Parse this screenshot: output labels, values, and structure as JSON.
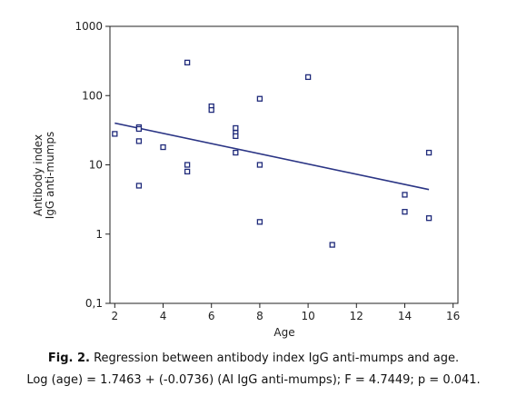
{
  "chart_data": {
    "type": "scatter",
    "xlabel": "Age",
    "ylabel_lines": [
      "Antibody index",
      "IgG anti-mumps"
    ],
    "x_range": [
      1.8,
      16.2
    ],
    "x_ticks": [
      2,
      4,
      6,
      8,
      10,
      12,
      14,
      16
    ],
    "y_scale": "log",
    "y_range": [
      0.1,
      1000
    ],
    "y_ticks": [
      {
        "value": 0.1,
        "label": "0,1"
      },
      {
        "value": 1,
        "label": "1"
      },
      {
        "value": 10,
        "label": "10"
      },
      {
        "value": 100,
        "label": "100"
      },
      {
        "value": 1000,
        "label": "1000"
      }
    ],
    "points": [
      {
        "x": 2,
        "y": 28
      },
      {
        "x": 3,
        "y": 35
      },
      {
        "x": 3,
        "y": 33
      },
      {
        "x": 3,
        "y": 22
      },
      {
        "x": 3,
        "y": 5
      },
      {
        "x": 4,
        "y": 18
      },
      {
        "x": 5,
        "y": 300
      },
      {
        "x": 5,
        "y": 10
      },
      {
        "x": 5,
        "y": 8
      },
      {
        "x": 6,
        "y": 70
      },
      {
        "x": 6,
        "y": 62
      },
      {
        "x": 7,
        "y": 34
      },
      {
        "x": 7,
        "y": 29
      },
      {
        "x": 7,
        "y": 26
      },
      {
        "x": 7,
        "y": 15
      },
      {
        "x": 8,
        "y": 90
      },
      {
        "x": 8,
        "y": 10
      },
      {
        "x": 8,
        "y": 1.5
      },
      {
        "x": 10,
        "y": 185
      },
      {
        "x": 11,
        "y": 0.7
      },
      {
        "x": 14,
        "y": 3.7
      },
      {
        "x": 14,
        "y": 2.1
      },
      {
        "x": 15,
        "y": 15
      },
      {
        "x": 15,
        "y": 1.7
      }
    ],
    "regression_line": {
      "x": [
        2,
        15
      ],
      "y": [
        40,
        4.4
      ]
    },
    "colors": {
      "marker": "#1f2a7a",
      "line": "#2b3585",
      "frame": "#222222"
    },
    "grid": false,
    "legend": "none"
  },
  "caption": {
    "fig_label": "Fig. 2.",
    "fig_text": " Regression between antibody index IgG anti-mumps and age.",
    "formula": "Log (age) = 1.7463 + (-0.0736) (AI IgG anti-mumps); F = 4.7449; p = 0.041."
  }
}
